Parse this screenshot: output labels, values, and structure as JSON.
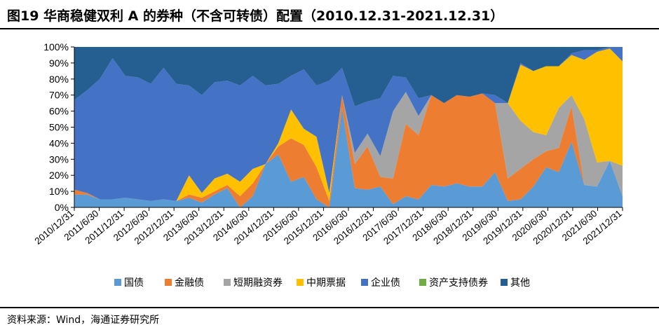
{
  "header": {
    "title": "图19 华商稳健双利 A 的券种（不含可转债）配置（2010.12.31-2021.12.31）"
  },
  "footer": {
    "source": "资料来源：Wind，海通证券研究所"
  },
  "chart_data": {
    "type": "area",
    "stacked": true,
    "normalized": true,
    "ylim": [
      0,
      100
    ],
    "y_ticks": [
      "0%",
      "10%",
      "20%",
      "30%",
      "40%",
      "50%",
      "60%",
      "70%",
      "80%",
      "90%",
      "100%"
    ],
    "x_tick_labels": [
      "2010/12/31",
      "2011/6/30",
      "2011/12/31",
      "2012/6/30",
      "2012/12/31",
      "2013/6/30",
      "2013/12/31",
      "2014/6/30",
      "2014/12/31",
      "2015/6/30",
      "2015/12/31",
      "2016/6/30",
      "2016/12/31",
      "2017/6/30",
      "2017/12/31",
      "2018/6/30",
      "2018/12/31",
      "2019/6/30",
      "2019/12/31",
      "2020/6/30",
      "2020/12/31",
      "2021/6/30",
      "2021/12/31"
    ],
    "legend_position": "bottom",
    "series": [
      {
        "name": "国债",
        "color": "#5B9BD5",
        "values": [
          8,
          8,
          5,
          5,
          6,
          5,
          4,
          5,
          4,
          6,
          3,
          8,
          12,
          0,
          7,
          27,
          33,
          16,
          19,
          5,
          0,
          62,
          12,
          11,
          13,
          2,
          7,
          5,
          14,
          13,
          15,
          13,
          13,
          22,
          4,
          5,
          13,
          25,
          22,
          41,
          14,
          13,
          29,
          7
        ]
      },
      {
        "name": "金融债",
        "color": "#ED7D31",
        "values": [
          3,
          1,
          0,
          0,
          0,
          0,
          0,
          0,
          0,
          2,
          3,
          2,
          2,
          7,
          8,
          0,
          5,
          27,
          20,
          20,
          4,
          8,
          15,
          27,
          6,
          16,
          45,
          40,
          56,
          52,
          55,
          56,
          58,
          43,
          14,
          19,
          17,
          10,
          15,
          22,
          0,
          0,
          0,
          0
        ]
      },
      {
        "name": "短期融资券",
        "color": "#A5A5A5",
        "values": [
          0,
          0,
          0,
          0,
          0,
          0,
          0,
          0,
          0,
          0,
          0,
          0,
          0,
          0,
          0,
          0,
          0,
          0,
          0,
          0,
          0,
          0,
          7,
          8,
          13,
          42,
          20,
          12,
          0,
          0,
          0,
          0,
          0,
          0,
          47,
          30,
          17,
          10,
          25,
          7,
          41,
          15,
          0,
          19
        ]
      },
      {
        "name": "中期票据",
        "color": "#FFC000",
        "values": [
          0,
          0,
          0,
          0,
          0,
          0,
          0,
          0,
          0,
          12,
          3,
          8,
          7,
          9,
          9,
          0,
          2,
          18,
          10,
          19,
          5,
          0,
          0,
          0,
          0,
          0,
          0,
          0,
          0,
          0,
          0,
          0,
          0,
          0,
          0,
          35,
          38,
          43,
          26,
          25,
          37,
          69,
          70,
          65
        ]
      },
      {
        "name": "企业债",
        "color": "#4472C4",
        "values": [
          56,
          64,
          75,
          88,
          76,
          76,
          73,
          82,
          73,
          56,
          61,
          60,
          58,
          60,
          58,
          49,
          37,
          21,
          37,
          32,
          70,
          17,
          29,
          20,
          36,
          22,
          9,
          11,
          0,
          0,
          0,
          0,
          0,
          5,
          0,
          1,
          0,
          0,
          0,
          1,
          6,
          1,
          1,
          9
        ]
      },
      {
        "name": "资产支持债券",
        "color": "#70AD47",
        "values": [
          0,
          0,
          0,
          0,
          0,
          0,
          0,
          0,
          0,
          0,
          0,
          0,
          0,
          0,
          0,
          0,
          0,
          0,
          0,
          0,
          0,
          0,
          0,
          0,
          0,
          0,
          0,
          0,
          0,
          0,
          0,
          0,
          0,
          0,
          0,
          0,
          0,
          0,
          0,
          0,
          0,
          0,
          0,
          0
        ]
      },
      {
        "name": "其他",
        "color": "#255E91",
        "values": [
          33,
          27,
          20,
          7,
          18,
          19,
          23,
          13,
          23,
          24,
          30,
          22,
          21,
          24,
          18,
          24,
          23,
          18,
          14,
          24,
          21,
          13,
          37,
          34,
          32,
          18,
          19,
          32,
          30,
          35,
          30,
          31,
          29,
          30,
          35,
          10,
          15,
          12,
          12,
          4,
          2,
          2,
          0,
          0
        ]
      }
    ]
  }
}
